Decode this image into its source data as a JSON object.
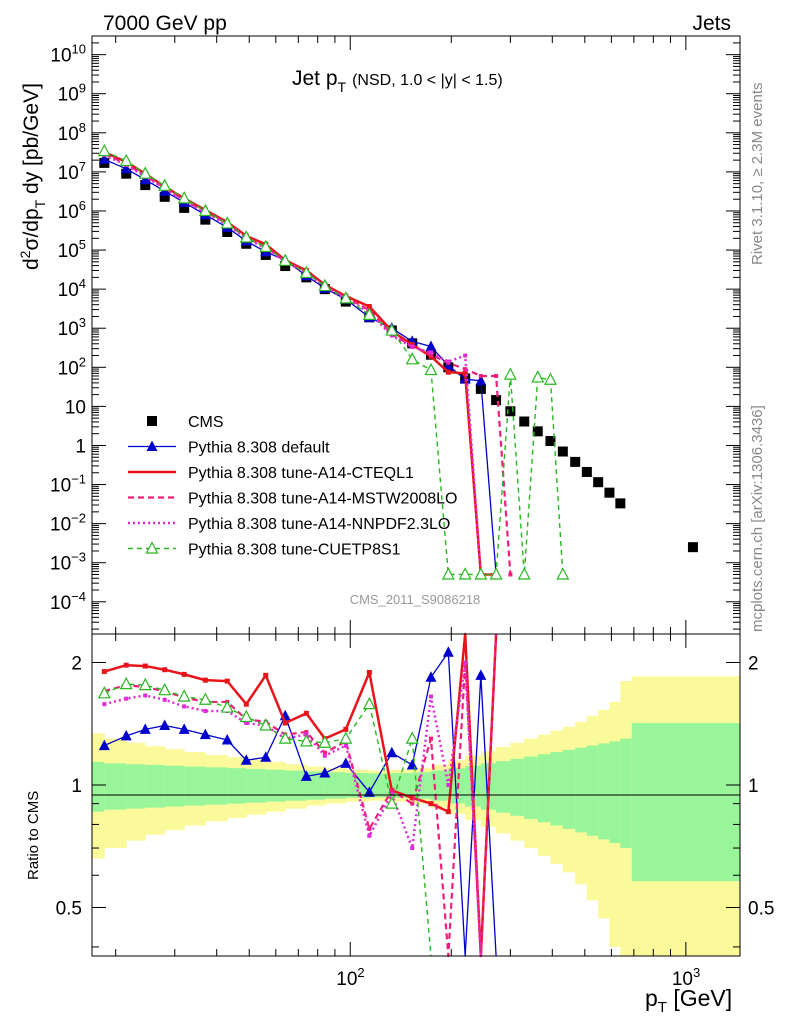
{
  "header": {
    "left": "7000 GeV pp",
    "right": "Jets"
  },
  "side_labels": {
    "rivet": "Rivet 3.1.10, ≥ 2.3M events",
    "mcplots": "mcplots.cern.ch [arXiv:1306.3436]"
  },
  "watermark": "CMS_2011_S9086218",
  "colors": {
    "cms": "#000000",
    "default": "#0000cc",
    "cteql1": "#e8141a",
    "mstw": "#ee1f7a",
    "nnpdf": "#e22ad8",
    "cuetp8s1": "#27b81f",
    "band_inner": "#99f59a",
    "band_outer": "#fafa9a"
  },
  "chart_data": [
    {
      "type": "line",
      "title": "Jet p",
      "title_sub": "T",
      "title_extra": "(NSD, 1.0 < |y| < 1.5)",
      "ylabel_parts": [
        "d",
        "2",
        "σ/dp",
        "T",
        " dy [pb/GeV]"
      ],
      "xscale": "log",
      "yscale": "log",
      "xlim": [
        17,
        1450
      ],
      "ylim": [
        1.5e-05,
        30000000000
      ],
      "yticks": [
        {
          "v": 10000000000.0,
          "m": "10",
          "e": "10"
        },
        {
          "v": 1000000000.0,
          "m": "10",
          "e": "9"
        },
        {
          "v": 100000000.0,
          "m": "10",
          "e": "8"
        },
        {
          "v": 10000000.0,
          "m": "10",
          "e": "7"
        },
        {
          "v": 1000000.0,
          "m": "10",
          "e": "6"
        },
        {
          "v": 100000.0,
          "m": "10",
          "e": "5"
        },
        {
          "v": 10000.0,
          "m": "10",
          "e": "4"
        },
        {
          "v": 1000.0,
          "m": "10",
          "e": "3"
        },
        {
          "v": 100.0,
          "m": "10",
          "e": "2"
        },
        {
          "v": 10,
          "m": "10",
          "e": ""
        },
        {
          "v": 1,
          "m": "1",
          "e": ""
        },
        {
          "v": 0.1,
          "m": "10",
          "e": "−1"
        },
        {
          "v": 0.01,
          "m": "10",
          "e": "−2"
        },
        {
          "v": 0.001,
          "m": "10",
          "e": "−3"
        },
        {
          "v": 0.0001,
          "m": "10",
          "e": "−4"
        }
      ],
      "legend_position": "bottom-left",
      "series": [
        {
          "key": "cms",
          "name": "CMS",
          "style": "square",
          "x": [
            18.5,
            21.5,
            24.5,
            28,
            32,
            37,
            43,
            49,
            56,
            64,
            74,
            84,
            97,
            114,
            133,
            153,
            174,
            196,
            220,
            245,
            272,
            300,
            330,
            362,
            395,
            430,
            468,
            507,
            548,
            592,
            638,
            1050
          ],
          "y": [
            17000000.0,
            9000000.0,
            4600000.0,
            2300000.0,
            1200000.0,
            600000.0,
            290000.0,
            145000.0,
            75000.0,
            39000.0,
            20000.0,
            10000.0,
            4800.0,
            1900.0,
            880,
            410,
            210,
            100,
            52,
            28,
            14.5,
            7.5,
            4.1,
            2.3,
            1.3,
            0.7,
            0.38,
            0.21,
            0.115,
            0.062,
            0.033,
            0.0025
          ]
        },
        {
          "key": "default",
          "name": "Pythia 8.308 default",
          "style": "triangle",
          "x": [
            18.5,
            21.5,
            24.5,
            28,
            32,
            37,
            43,
            49,
            56,
            64,
            74,
            84,
            97,
            114,
            133,
            153,
            174,
            196,
            220,
            245,
            272
          ],
          "y": [
            21000000.0,
            12000000.0,
            6300000.0,
            3200000.0,
            1650000.0,
            800000.0,
            380000.0,
            170000.0,
            90000.0,
            55000.0,
            22000.0,
            10500.0,
            5500.0,
            1900.0,
            1000.0,
            460,
            340,
            110,
            50,
            45,
            0.0005
          ]
        },
        {
          "key": "cteql1",
          "name": "Pythia 8.308 tune-A14-CTEQL1",
          "style": "solid",
          "x": [
            18.5,
            21.5,
            24.5,
            28,
            32,
            37,
            43,
            49,
            56,
            64,
            74,
            84,
            97,
            114,
            133,
            153,
            174,
            196,
            220,
            245,
            272
          ],
          "y": [
            32000000.0,
            18000000.0,
            9000000.0,
            4200000.0,
            2100000.0,
            1050000.0,
            520000.0,
            230000.0,
            140000.0,
            55000.0,
            30000.0,
            13000.0,
            6600.0,
            3600.0,
            850,
            380,
            190,
            75,
            70,
            0.0005,
            0.0005
          ]
        },
        {
          "key": "mstw",
          "name": "Pythia 8.308 tune-A14-MSTW2008LO",
          "style": "dashed",
          "x": [
            18.5,
            21.5,
            24.5,
            28,
            32,
            37,
            43,
            49,
            56,
            64,
            74,
            84,
            97,
            114,
            133,
            153,
            174,
            196,
            220,
            245,
            272,
            300
          ],
          "y": [
            29000000.0,
            16000000.0,
            8000000.0,
            3900000.0,
            1900000.0,
            950000.0,
            480000.0,
            210000.0,
            120000.0,
            52000.0,
            27000.0,
            12000.0,
            6200.0,
            2900.0,
            700,
            350,
            210,
            130,
            90,
            60,
            60,
            0.0005
          ]
        },
        {
          "key": "nnpdf",
          "name": "Pythia 8.308 tune-A14-NNPDF2.3LO",
          "style": "dotted",
          "x": [
            18.5,
            21.5,
            24.5,
            28,
            32,
            37,
            43,
            49,
            56,
            64,
            74,
            84,
            97,
            114,
            133,
            153,
            174,
            196,
            220,
            245
          ],
          "y": [
            27000000.0,
            15000000.0,
            7600000.0,
            3700000.0,
            1800000.0,
            900000.0,
            450000.0,
            200000.0,
            110000.0,
            50000.0,
            26000.0,
            11500.0,
            5800.0,
            2500.0,
            650,
            330,
            240,
            140,
            200,
            0.0005
          ]
        },
        {
          "key": "cuetp8s1",
          "name": "Pythia 8.308 tune-CUETP8S1",
          "style": "dashed-triangle",
          "x": [
            18.5,
            21.5,
            24.5,
            28,
            32,
            37,
            43,
            49,
            56,
            64,
            74,
            84,
            97,
            114,
            133,
            153,
            174,
            196,
            220,
            245,
            272,
            300,
            330,
            362,
            395,
            430
          ],
          "y": [
            34000000.0,
            19000000.0,
            9000000.0,
            4400000.0,
            2100000.0,
            1000000.0,
            480000.0,
            210000.0,
            120000.0,
            53000.0,
            26000.0,
            12000.0,
            5800.0,
            2200.0,
            870,
            160,
            85,
            0.0005,
            0.0005,
            0.0005,
            0.0005,
            65,
            0.0005,
            55,
            48,
            0.0005
          ]
        }
      ]
    },
    {
      "type": "line",
      "ylabel": "Ratio to CMS",
      "xlabel": "p",
      "xlabel_sub": "T",
      "xlabel_unit": " [GeV]",
      "xscale": "log",
      "yscale": "log",
      "xlim": [
        17,
        1450
      ],
      "ylim": [
        0.38,
        2.35
      ],
      "yticks": [
        {
          "v": 0.5,
          "label": "0.5"
        },
        {
          "v": 1,
          "label": "1"
        },
        {
          "v": 2,
          "label": "2"
        }
      ],
      "xticks": [
        {
          "v": 100,
          "m": "10",
          "e": "2"
        },
        {
          "v": 1000,
          "m": "10",
          "e": "3"
        }
      ],
      "band_edges": [
        17,
        18.5,
        21.5,
        24.5,
        28,
        32,
        37,
        43,
        49,
        56,
        64,
        74,
        84,
        97,
        114,
        133,
        153,
        174,
        196,
        220,
        245,
        272,
        300,
        330,
        362,
        395,
        430,
        468,
        507,
        548,
        592,
        638,
        690,
        1450
      ],
      "band_inner": [
        0.14,
        0.13,
        0.125,
        0.12,
        0.115,
        0.11,
        0.105,
        0.1,
        0.095,
        0.09,
        0.085,
        0.08,
        0.075,
        0.07,
        0.068,
        0.07,
        0.075,
        0.085,
        0.1,
        0.115,
        0.13,
        0.145,
        0.16,
        0.175,
        0.19,
        0.205,
        0.22,
        0.235,
        0.25,
        0.265,
        0.28,
        0.3,
        0.42
      ],
      "band_outer": [
        0.34,
        0.3,
        0.27,
        0.245,
        0.225,
        0.205,
        0.185,
        0.17,
        0.155,
        0.14,
        0.125,
        0.11,
        0.1,
        0.09,
        0.085,
        0.09,
        0.1,
        0.12,
        0.15,
        0.18,
        0.21,
        0.24,
        0.27,
        0.3,
        0.33,
        0.36,
        0.39,
        0.43,
        0.48,
        0.53,
        0.6,
        0.8,
        0.85
      ],
      "series": [
        {
          "key": "default",
          "name": "Pythia 8.308 default",
          "style": "triangle",
          "x": [
            18.5,
            21.5,
            24.5,
            28,
            32,
            37,
            43,
            49,
            56,
            64,
            74,
            84,
            97,
            114,
            133,
            153,
            174,
            196,
            220,
            245,
            272
          ],
          "y": [
            1.25,
            1.32,
            1.37,
            1.4,
            1.37,
            1.33,
            1.29,
            1.15,
            1.17,
            1.48,
            1.05,
            1.07,
            1.13,
            0.96,
            1.2,
            1.12,
            1.84,
            2.12,
            0.3,
            1.86,
            0.3
          ]
        },
        {
          "key": "cteql1",
          "name": "Pythia 8.308 tune-A14-CTEQL1",
          "style": "solid",
          "x": [
            18.5,
            21.5,
            24.5,
            28,
            32,
            37,
            43,
            49,
            56,
            64,
            74,
            84,
            97,
            114,
            133,
            153,
            174,
            196,
            220,
            245,
            272
          ],
          "y": [
            1.9,
            1.97,
            1.96,
            1.92,
            1.87,
            1.81,
            1.8,
            1.58,
            1.86,
            1.42,
            1.5,
            1.3,
            1.37,
            1.89,
            0.97,
            0.93,
            0.9,
            0.86,
            2.5,
            0.3,
            2.5
          ]
        },
        {
          "key": "mstw",
          "name": "Pythia 8.308 tune-A14-MSTW2008LO",
          "style": "dashed",
          "x": [
            18.5,
            21.5,
            24.5,
            28,
            32,
            37,
            43,
            49,
            56,
            64,
            74,
            84,
            97,
            114,
            133,
            153,
            174,
            196,
            220,
            245,
            272
          ],
          "y": [
            1.7,
            1.76,
            1.74,
            1.7,
            1.64,
            1.6,
            1.6,
            1.45,
            1.43,
            1.33,
            1.35,
            1.2,
            1.28,
            0.78,
            0.97,
            0.9,
            1.3,
            0.3,
            2.0,
            0.3,
            2.4
          ]
        },
        {
          "key": "nnpdf",
          "name": "Pythia 8.308 tune-A14-NNPDF2.3LO",
          "style": "dotted",
          "x": [
            18.5,
            21.5,
            24.5,
            28,
            32,
            37,
            43,
            49,
            56,
            64,
            74,
            84,
            97,
            114,
            133,
            153,
            174,
            196,
            220,
            245
          ],
          "y": [
            1.58,
            1.63,
            1.66,
            1.62,
            1.56,
            1.52,
            1.52,
            1.42,
            1.4,
            1.3,
            1.33,
            1.18,
            1.25,
            0.75,
            0.95,
            0.7,
            1.65,
            1.0,
            2.0,
            0.3
          ]
        },
        {
          "key": "cuetp8s1",
          "name": "Pythia 8.308 tune-CUETP8S1",
          "style": "dashed-triangle",
          "x": [
            18.5,
            21.5,
            24.5,
            28,
            32,
            37,
            43,
            49,
            56,
            64,
            74,
            84,
            97,
            114,
            133,
            153,
            174
          ],
          "y": [
            1.68,
            1.77,
            1.76,
            1.71,
            1.65,
            1.62,
            1.55,
            1.47,
            1.4,
            1.3,
            1.28,
            1.27,
            1.3,
            1.58,
            0.9,
            1.3,
            0.3
          ]
        }
      ]
    }
  ]
}
